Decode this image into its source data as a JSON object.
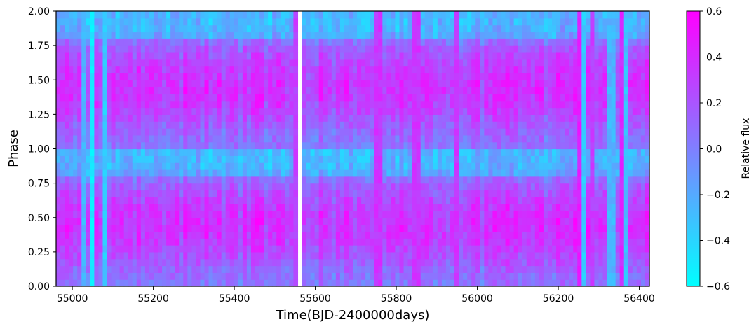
{
  "chart_data": {
    "type": "heatmap",
    "xlabel": "Time(BJD-2400000days)",
    "ylabel": "Phase",
    "xlim": [
      54960,
      56425
    ],
    "ylim": [
      0,
      2
    ],
    "x_ticks": [
      "55000",
      "55200",
      "55400",
      "55600",
      "55800",
      "56000",
      "56200",
      "56400"
    ],
    "y_ticks": [
      "0.00",
      "0.25",
      "0.50",
      "0.75",
      "1.00",
      "1.25",
      "1.50",
      "1.75",
      "2.00"
    ],
    "colorbar": {
      "label": "Relative flux",
      "range": [
        -0.6,
        0.6
      ],
      "ticks": [
        "0.6",
        "0.4",
        "0.2",
        "0.0",
        "−0.2",
        "−0.4",
        "−0.6"
      ],
      "colormap": "cool",
      "low_color": "#00ffff",
      "high_color": "#ff00ff"
    },
    "x_range": [
      54960,
      56425
    ],
    "phase_bins": 40,
    "time_bins": 140,
    "data_gap": [
      55555,
      55568
    ],
    "mean_profile": [
      0.05,
      0.08,
      0.12,
      0.17,
      0.22,
      0.27,
      0.31,
      0.34,
      0.36,
      0.36,
      0.34,
      0.31,
      0.27,
      0.22,
      0.17,
      0.08,
      -0.18,
      -0.24,
      -0.26,
      -0.25,
      0.05,
      0.08,
      0.12,
      0.17,
      0.22,
      0.27,
      0.31,
      0.34,
      0.36,
      0.36,
      0.34,
      0.31,
      0.27,
      0.22,
      0.17,
      0.08,
      -0.18,
      -0.24,
      -0.26,
      -0.25
    ],
    "strong_columns": [
      {
        "x": 55025,
        "flux": -0.25
      },
      {
        "x": 55048,
        "flux": 0.45
      },
      {
        "x": 55053,
        "flux": -0.5
      },
      {
        "x": 55082,
        "flux": -0.35
      },
      {
        "x": 55550,
        "flux": 0.3
      },
      {
        "x": 55755,
        "flux": 0.35
      },
      {
        "x": 55850,
        "flux": 0.35
      },
      {
        "x": 55950,
        "flux": 0.35
      },
      {
        "x": 56250,
        "flux": 0.45
      },
      {
        "x": 56260,
        "flux": -0.35
      },
      {
        "x": 56280,
        "flux": 0.3
      },
      {
        "x": 56330,
        "flux": -0.25
      },
      {
        "x": 56355,
        "flux": 0.4
      },
      {
        "x": 56370,
        "flux": -0.3
      }
    ]
  }
}
